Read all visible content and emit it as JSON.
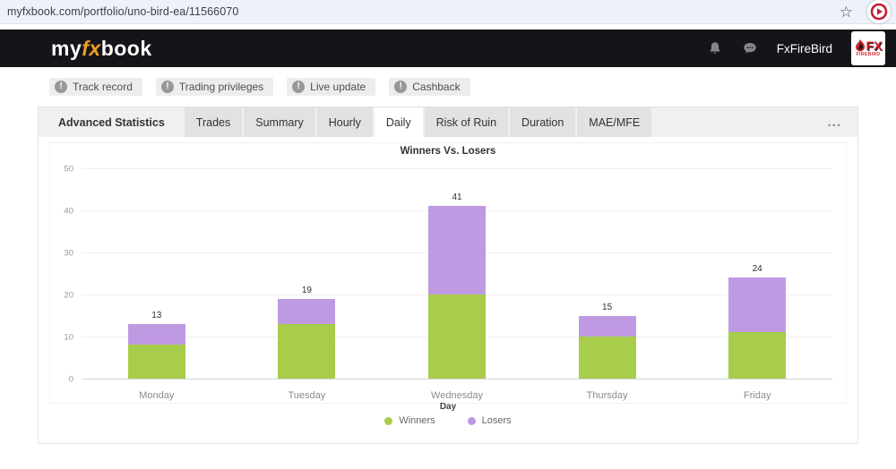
{
  "browser": {
    "url": "myfxbook.com/portfolio/uno-bird-ea/11566070",
    "bookmark_glyph": "☆"
  },
  "header": {
    "logo": {
      "my": "my",
      "fx": "fx",
      "book": "book"
    },
    "account_name": "FxFireBird",
    "brand_badge": {
      "fx": "FX",
      "firebird": "FIREBIRD"
    }
  },
  "badges": {
    "icon_glyph": "!",
    "items": [
      "Track record",
      "Trading privileges",
      "Live update",
      "Cashback"
    ]
  },
  "panel": {
    "tabs": [
      "Advanced Statistics",
      "Trades",
      "Summary",
      "Hourly",
      "Daily",
      "Risk of Ruin",
      "Duration",
      "MAE/MFE"
    ],
    "active_tab": "Daily",
    "more_options_glyph": "..."
  },
  "colors": {
    "logo_accent_orange": "#f0a01e",
    "brand_red": "#d6232a",
    "winners_green": "#a7cd4b",
    "losers_purple": "#bf9ae2"
  },
  "chart_data": {
    "type": "bar",
    "stacked": true,
    "title": "Winners Vs. Losers",
    "categories": [
      "Monday",
      "Tuesday",
      "Wednesday",
      "Thursday",
      "Friday"
    ],
    "series": [
      {
        "name": "Winners",
        "color": "#a7cd4b",
        "values": [
          8,
          13,
          20,
          10,
          11
        ]
      },
      {
        "name": "Losers",
        "color": "#bf9ae2",
        "values": [
          5,
          6,
          21,
          5,
          13
        ]
      }
    ],
    "totals": [
      13,
      19,
      41,
      15,
      24
    ],
    "xlabel": "Day",
    "ylabel": "",
    "ylim": [
      0,
      50
    ],
    "ytick_step": 10,
    "grid": true,
    "legend_position": "bottom"
  }
}
